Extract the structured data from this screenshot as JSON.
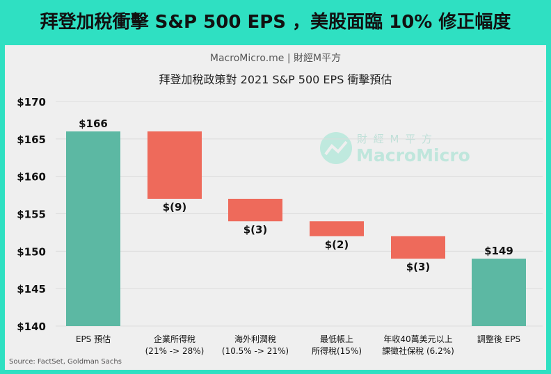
{
  "headline": "拜登加稅衝擊 S&P 500 EPS ，美股面臨 10% 修正幅度",
  "brand": "MacroMicro.me | 財經M平方",
  "watermark": {
    "cn": "財 經 M 平 方",
    "en": "MacroMicro"
  },
  "source": "Source: FactSet, Goldman Sachs",
  "colors": {
    "background": "#2fe0c2",
    "total": "#5cb8a3",
    "decrease": "#ee6a5b",
    "panel": "#efefef"
  },
  "chart_data": {
    "type": "waterfall",
    "title": "拜登加稅政策對 2021 S&P 500 EPS 衝擊預估",
    "ylim": [
      140,
      170
    ],
    "yticks": [
      140,
      145,
      150,
      155,
      160,
      165,
      170
    ],
    "ytick_labels": [
      "$140",
      "$145",
      "$150",
      "$155",
      "$160",
      "$165",
      "$170"
    ],
    "grid": true,
    "categories": [
      [
        "EPS 預估"
      ],
      [
        "企業所得稅",
        "(21% -> 28%)"
      ],
      [
        "海外利潤稅",
        "(10.5% -> 21%)"
      ],
      [
        "最低帳上",
        "所得稅(15%)"
      ],
      [
        "年收40萬美元以上",
        "課徵社保稅 (6.2%)"
      ],
      [
        "調整後 EPS"
      ]
    ],
    "values": [
      166,
      -9,
      -3,
      -2,
      -3,
      149
    ],
    "kinds": [
      "total",
      "delta",
      "delta",
      "delta",
      "delta",
      "total"
    ],
    "data_labels": [
      "$166",
      "$(9)",
      "$(3)",
      "$(2)",
      "$(3)",
      "$149"
    ]
  }
}
